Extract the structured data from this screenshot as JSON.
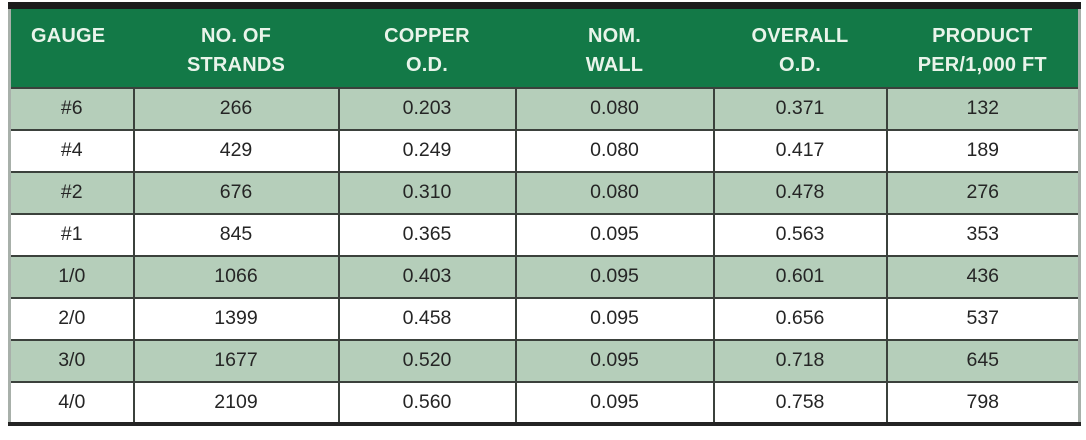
{
  "colors": {
    "header_bg": "#137947",
    "header_text": "#e9f4ea",
    "row_alt_bg": "#b5ceba",
    "row_bg": "#ffffff",
    "grid_line": "#3b413c",
    "top_bar": "#1c1c1c",
    "bottom_bar": "#242424",
    "outer_border": "#a8b0aa",
    "body_text": "#252525"
  },
  "table": {
    "columns": [
      {
        "id": "gauge",
        "label_lines": [
          "GAUGE"
        ],
        "align": "left"
      },
      {
        "id": "strands",
        "label_lines": [
          "NO. OF",
          "STRANDS"
        ],
        "align": "center"
      },
      {
        "id": "copper-od",
        "label_lines": [
          "COPPER",
          "O.D."
        ],
        "align": "center"
      },
      {
        "id": "nom-wall",
        "label_lines": [
          "NOM.",
          "WALL"
        ],
        "align": "center"
      },
      {
        "id": "overall-od",
        "label_lines": [
          "OVERALL",
          "O.D."
        ],
        "align": "center"
      },
      {
        "id": "product",
        "label_lines": [
          "PRODUCT",
          "PER/1,000 FT"
        ],
        "align": "center"
      }
    ],
    "rows": [
      {
        "shaded": true,
        "cells": [
          "#6",
          "266",
          "0.203",
          "0.080",
          "0.371",
          "132"
        ]
      },
      {
        "shaded": false,
        "cells": [
          "#4",
          "429",
          "0.249",
          "0.080",
          "0.417",
          "189"
        ]
      },
      {
        "shaded": true,
        "cells": [
          "#2",
          "676",
          "0.310",
          "0.080",
          "0.478",
          "276"
        ]
      },
      {
        "shaded": false,
        "cells": [
          "#1",
          "845",
          "0.365",
          "0.095",
          "0.563",
          "353"
        ]
      },
      {
        "shaded": true,
        "cells": [
          "1/0",
          "1066",
          "0.403",
          "0.095",
          "0.601",
          "436"
        ]
      },
      {
        "shaded": false,
        "cells": [
          "2/0",
          "1399",
          "0.458",
          "0.095",
          "0.656",
          "537"
        ]
      },
      {
        "shaded": true,
        "cells": [
          "3/0",
          "1677",
          "0.520",
          "0.095",
          "0.718",
          "645"
        ]
      },
      {
        "shaded": false,
        "cells": [
          "4/0",
          "2109",
          "0.560",
          "0.095",
          "0.758",
          "798"
        ]
      }
    ]
  }
}
